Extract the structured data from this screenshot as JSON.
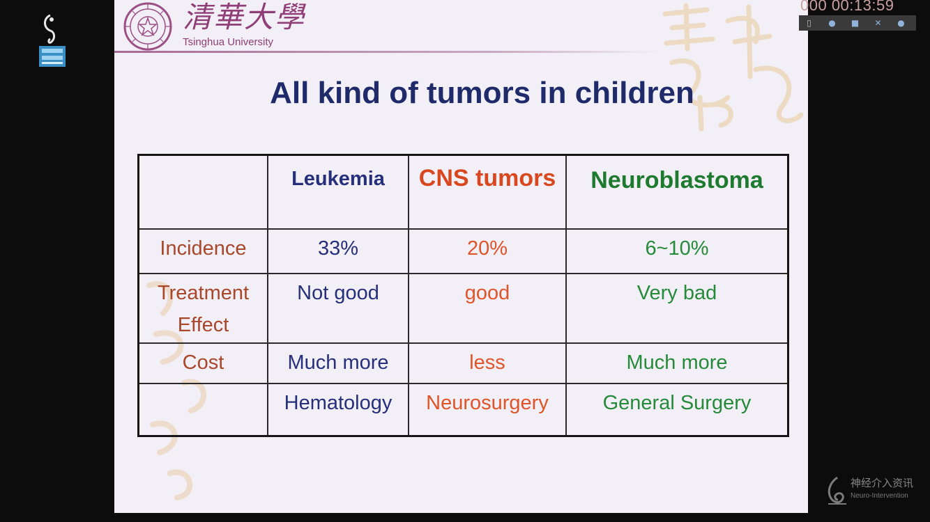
{
  "player": {
    "timestamp": "000 00:13:59",
    "buttons": [
      "window-icon",
      "info-icon",
      "settings-icon",
      "close-icon",
      "help-icon"
    ]
  },
  "slide": {
    "university_name_cn": "清華大學",
    "university_name_en": "Tsinghua University",
    "title": "All kind of tumors in children",
    "table": {
      "columns": [
        "",
        "Leukemia",
        "CNS tumors",
        "Neuroblastoma"
      ],
      "rows": [
        {
          "label": "Incidence",
          "values": [
            "33%",
            "20%",
            "6~10%"
          ]
        },
        {
          "label": "Treatment Effect",
          "values": [
            "Not good",
            "good",
            "Very bad"
          ]
        },
        {
          "label": "Cost",
          "values": [
            "Much more",
            "less",
            "Much more"
          ]
        },
        {
          "label": "",
          "values": [
            "Hematology",
            "Neurosurgery",
            "General Surgery"
          ]
        }
      ]
    }
  },
  "watermark": {
    "text_cn": "神经介入资讯",
    "text_en": "Neuro-Intervention"
  },
  "colors": {
    "title": "#1f2a6b",
    "leukemia": "#26307a",
    "cns": "#e0542a",
    "neuroblastoma": "#258a3a",
    "row_label": "#a8472a",
    "university": "#8f3e78"
  }
}
